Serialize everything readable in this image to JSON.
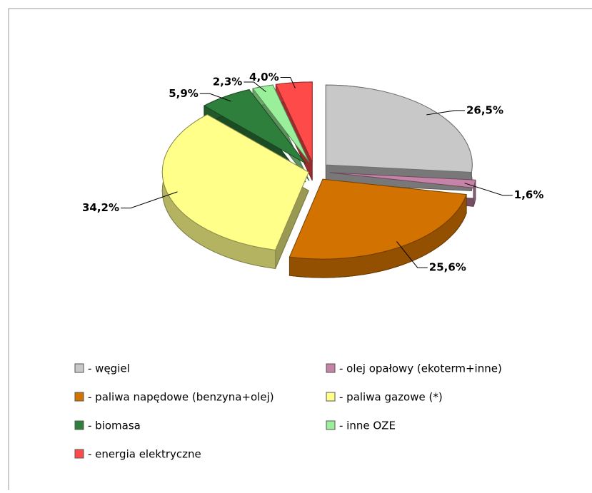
{
  "chart_data": {
    "type": "pie",
    "categories": [
      "- węgiel",
      "- olej opałowy (ekoterm+inne)",
      "- paliwa napędowe (benzyna+olej)",
      "- paliwa gazowe (*)",
      "- biomasa",
      "- inne OZE",
      "- energia elektryczne"
    ],
    "values": [
      26.5,
      1.6,
      25.6,
      34.2,
      5.9,
      2.3,
      4.0
    ],
    "value_labels": [
      "26,5%",
      "1,6%",
      "25,6%",
      "34,2%",
      "5,9%",
      "2,3%",
      "4,0%"
    ],
    "colors": [
      "#c8c8c8",
      "#c683a8",
      "#d27200",
      "#ffff8a",
      "#2f7f3c",
      "#9af09a",
      "#ff4a4a"
    ],
    "legend": "bottom"
  }
}
